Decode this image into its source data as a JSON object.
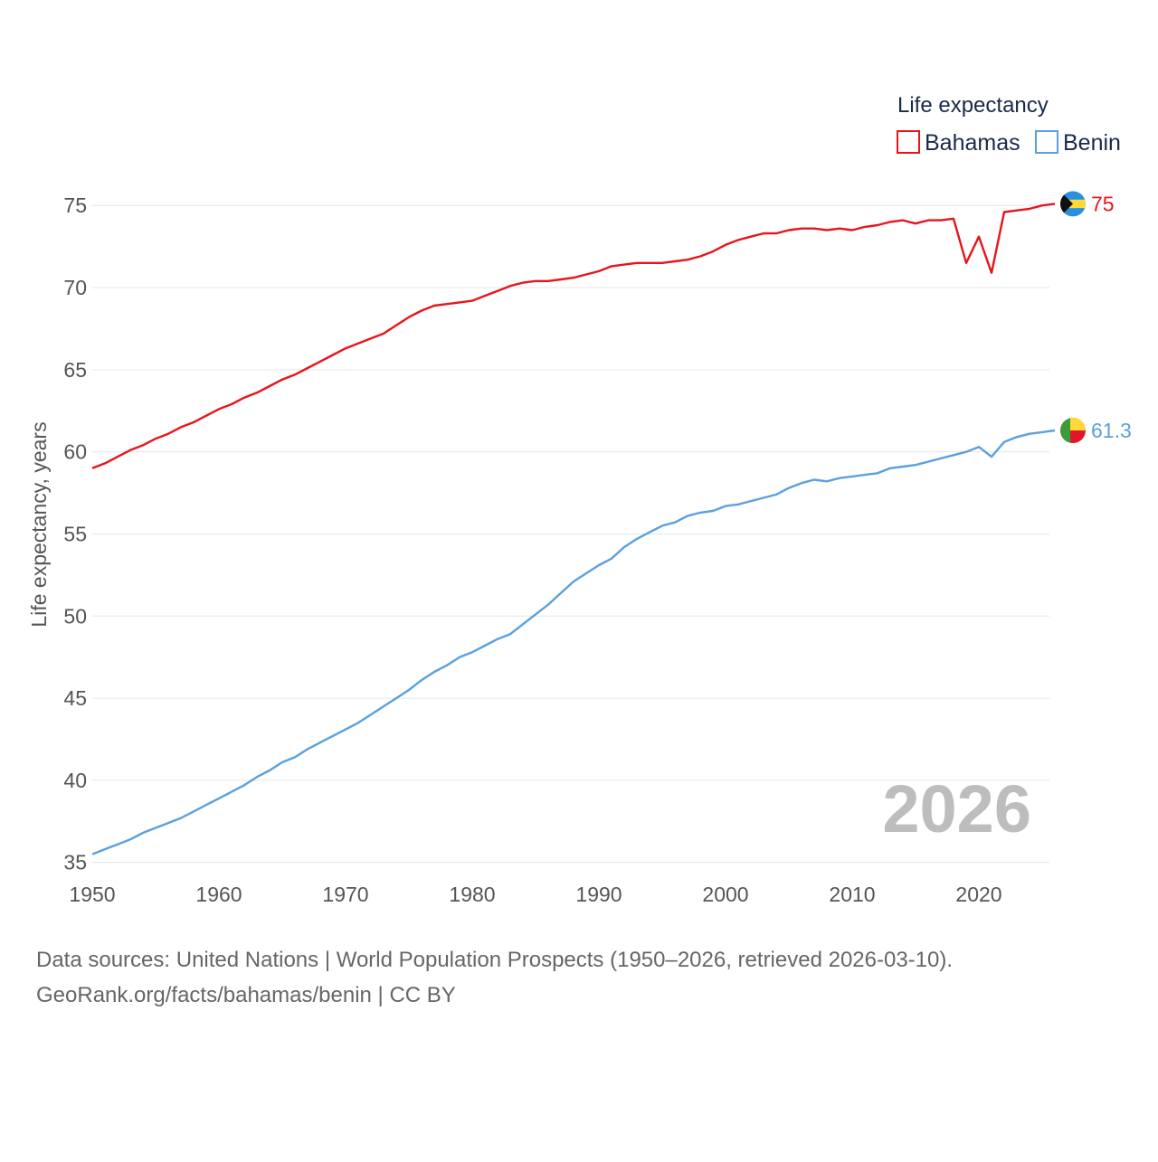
{
  "legend": {
    "title": "Life expectancy",
    "items": [
      {
        "label": "Bahamas",
        "color": "#e8141b"
      },
      {
        "label": "Benin",
        "color": "#5aa0e0"
      }
    ]
  },
  "year_watermark": "2026",
  "footer": {
    "line1": "Data sources: United Nations | World Population Prospects (1950–2026, retrieved 2026-03-10).",
    "line2": "GeoRank.org/facts/bahamas/benin | CC BY"
  },
  "chart_data": {
    "type": "line",
    "title": "Life expectancy",
    "xlabel": "",
    "ylabel": "Life expectancy, years",
    "xlim": [
      1950,
      2026
    ],
    "ylim": [
      33,
      76.5
    ],
    "x_ticks": [
      1950,
      1960,
      1970,
      1980,
      1990,
      2000,
      2010,
      2020
    ],
    "y_ticks": [
      35,
      40,
      45,
      50,
      55,
      60,
      65,
      70,
      75
    ],
    "grid": true,
    "legend_position": "top-right",
    "x": [
      1950,
      1951,
      1952,
      1953,
      1954,
      1955,
      1956,
      1957,
      1958,
      1959,
      1960,
      1961,
      1962,
      1963,
      1964,
      1965,
      1966,
      1967,
      1968,
      1969,
      1970,
      1971,
      1972,
      1973,
      1974,
      1975,
      1976,
      1977,
      1978,
      1979,
      1980,
      1981,
      1982,
      1983,
      1984,
      1985,
      1986,
      1987,
      1988,
      1989,
      1990,
      1991,
      1992,
      1993,
      1994,
      1995,
      1996,
      1997,
      1998,
      1999,
      2000,
      2001,
      2002,
      2003,
      2004,
      2005,
      2006,
      2007,
      2008,
      2009,
      2010,
      2011,
      2012,
      2013,
      2014,
      2015,
      2016,
      2017,
      2018,
      2019,
      2020,
      2021,
      2022,
      2023,
      2024,
      2025,
      2026
    ],
    "series": [
      {
        "name": "Bahamas",
        "color": "#e8141b",
        "end_label": "75",
        "flag": "bahamas-flag",
        "values": [
          59.0,
          59.3,
          59.7,
          60.1,
          60.4,
          60.8,
          61.1,
          61.5,
          61.8,
          62.2,
          62.6,
          62.9,
          63.3,
          63.6,
          64.0,
          64.4,
          64.7,
          65.1,
          65.5,
          65.9,
          66.3,
          66.6,
          66.9,
          67.2,
          67.7,
          68.2,
          68.6,
          68.9,
          69.0,
          69.1,
          69.2,
          69.5,
          69.8,
          70.1,
          70.3,
          70.4,
          70.4,
          70.5,
          70.6,
          70.8,
          71.0,
          71.3,
          71.4,
          71.5,
          71.5,
          71.5,
          71.6,
          71.7,
          71.9,
          72.2,
          72.6,
          72.9,
          73.1,
          73.3,
          73.3,
          73.5,
          73.6,
          73.6,
          73.5,
          73.6,
          73.5,
          73.7,
          73.8,
          74.0,
          74.1,
          73.9,
          74.1,
          74.1,
          74.2,
          71.5,
          73.1,
          70.9,
          74.6,
          74.7,
          74.8,
          75.0,
          75.1
        ]
      },
      {
        "name": "Benin",
        "color": "#5aa0e0",
        "end_label": "61.3",
        "flag": "benin-flag",
        "values": [
          35.5,
          35.8,
          36.1,
          36.4,
          36.8,
          37.1,
          37.4,
          37.7,
          38.1,
          38.5,
          38.9,
          39.3,
          39.7,
          40.2,
          40.6,
          41.1,
          41.4,
          41.9,
          42.3,
          42.7,
          43.1,
          43.5,
          44.0,
          44.5,
          45.0,
          45.5,
          46.1,
          46.6,
          47.0,
          47.5,
          47.8,
          48.2,
          48.6,
          48.9,
          49.5,
          50.1,
          50.7,
          51.4,
          52.1,
          52.6,
          53.1,
          53.5,
          54.2,
          54.7,
          55.1,
          55.5,
          55.7,
          56.1,
          56.3,
          56.4,
          56.7,
          56.8,
          57.0,
          57.2,
          57.4,
          57.8,
          58.1,
          58.3,
          58.2,
          58.4,
          58.5,
          58.6,
          58.7,
          59.0,
          59.1,
          59.2,
          59.4,
          59.6,
          59.8,
          60.0,
          60.3,
          59.7,
          60.6,
          60.9,
          61.1,
          61.2,
          61.3
        ]
      }
    ]
  }
}
